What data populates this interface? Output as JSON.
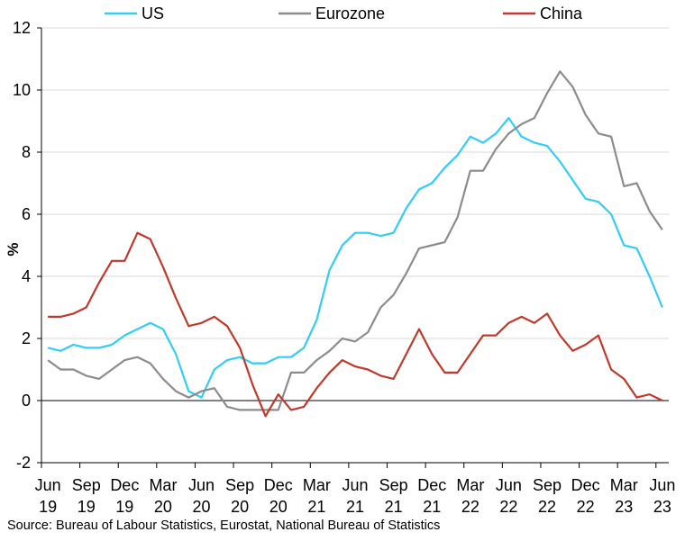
{
  "chart_data": {
    "type": "line",
    "title": "",
    "xlabel": "",
    "ylabel": "%",
    "ylim": [
      -2,
      12
    ],
    "yticks": [
      -2,
      0,
      2,
      4,
      6,
      8,
      10,
      12
    ],
    "grid": "horizontal",
    "legend_position": "top",
    "x": [
      "Jun 2019",
      "Jul 2019",
      "Aug 2019",
      "Sep 2019",
      "Oct 2019",
      "Nov 2019",
      "Dec 2019",
      "Jan 2020",
      "Feb 2020",
      "Mar 2020",
      "Apr 2020",
      "May 2020",
      "Jun 2020",
      "Jul 2020",
      "Aug 2020",
      "Sep 2020",
      "Oct 2020",
      "Nov 2020",
      "Dec 2020",
      "Jan 2021",
      "Feb 2021",
      "Mar 2021",
      "Apr 2021",
      "May 2021",
      "Jun 2021",
      "Jul 2021",
      "Aug 2021",
      "Sep 2021",
      "Oct 2021",
      "Nov 2021",
      "Dec 2021",
      "Jan 2022",
      "Feb 2022",
      "Mar 2022",
      "Apr 2022",
      "May 2022",
      "Jun 2022",
      "Jul 2022",
      "Aug 2022",
      "Sep 2022",
      "Oct 2022",
      "Nov 2022",
      "Dec 2022",
      "Jan 2023",
      "Feb 2023",
      "Mar 2023",
      "Apr 2023",
      "May 2023",
      "Jun 2023"
    ],
    "x_tick_labels": [
      {
        "month": "Jun",
        "year": "19"
      },
      {
        "month": "Sep",
        "year": "19"
      },
      {
        "month": "Dec",
        "year": "19"
      },
      {
        "month": "Mar",
        "year": "20"
      },
      {
        "month": "Jun",
        "year": "20"
      },
      {
        "month": "Sep",
        "year": "20"
      },
      {
        "month": "Dec",
        "year": "20"
      },
      {
        "month": "Mar",
        "year": "21"
      },
      {
        "month": "Jun",
        "year": "21"
      },
      {
        "month": "Sep",
        "year": "21"
      },
      {
        "month": "Dec",
        "year": "21"
      },
      {
        "month": "Mar",
        "year": "22"
      },
      {
        "month": "Jun",
        "year": "22"
      },
      {
        "month": "Sep",
        "year": "22"
      },
      {
        "month": "Dec",
        "year": "22"
      },
      {
        "month": "Mar",
        "year": "23"
      },
      {
        "month": "Jun",
        "year": "23"
      }
    ],
    "series": [
      {
        "name": "US",
        "color": "#33ccf5",
        "values": [
          1.7,
          1.6,
          1.8,
          1.7,
          1.7,
          1.8,
          2.1,
          2.3,
          2.5,
          2.3,
          1.5,
          0.3,
          0.1,
          1.0,
          1.3,
          1.4,
          1.2,
          1.2,
          1.4,
          1.4,
          1.7,
          2.6,
          4.2,
          5.0,
          5.4,
          5.4,
          5.3,
          5.4,
          6.2,
          6.8,
          7.0,
          7.5,
          7.9,
          8.5,
          8.3,
          8.6,
          9.1,
          8.5,
          8.3,
          8.2,
          7.7,
          7.1,
          6.5,
          6.4,
          6.0,
          5.0,
          4.9,
          4.0,
          3.0
        ]
      },
      {
        "name": "Eurozone",
        "color": "#8c8c8c",
        "values": [
          1.3,
          1.0,
          1.0,
          0.8,
          0.7,
          1.0,
          1.3,
          1.4,
          1.2,
          0.7,
          0.3,
          0.1,
          0.3,
          0.4,
          -0.2,
          -0.3,
          -0.3,
          -0.3,
          -0.3,
          0.9,
          0.9,
          1.3,
          1.6,
          2.0,
          1.9,
          2.2,
          3.0,
          3.4,
          4.1,
          4.9,
          5.0,
          5.1,
          5.9,
          7.4,
          7.4,
          8.1,
          8.6,
          8.9,
          9.1,
          9.9,
          10.6,
          10.1,
          9.2,
          8.6,
          8.5,
          6.9,
          7.0,
          6.1,
          5.5
        ]
      },
      {
        "name": "China",
        "color": "#c0392b",
        "values": [
          2.7,
          2.7,
          2.8,
          3.0,
          3.8,
          4.5,
          4.5,
          5.4,
          5.2,
          4.3,
          3.3,
          2.4,
          2.5,
          2.7,
          2.4,
          1.7,
          0.5,
          -0.5,
          0.2,
          -0.3,
          -0.2,
          0.4,
          0.9,
          1.3,
          1.1,
          1.0,
          0.8,
          0.7,
          1.5,
          2.3,
          1.5,
          0.9,
          0.9,
          1.5,
          2.1,
          2.1,
          2.5,
          2.7,
          2.5,
          2.8,
          2.1,
          1.6,
          1.8,
          2.1,
          1.0,
          0.7,
          0.1,
          0.2,
          0.0
        ]
      }
    ]
  },
  "source": "Source: Bureau of Labour Statistics, Eurostat, National Bureau of Statistics"
}
